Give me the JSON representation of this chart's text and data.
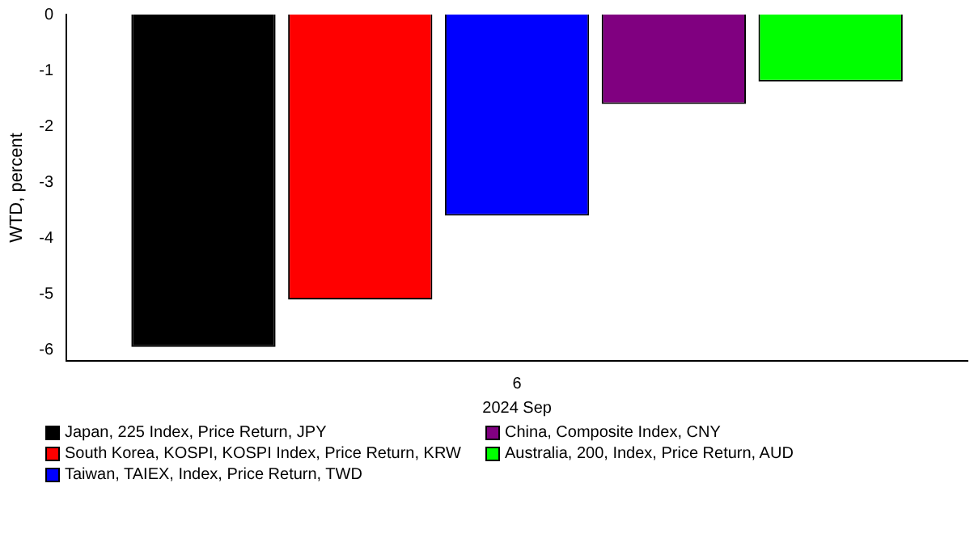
{
  "chart_data": {
    "type": "bar",
    "categories": [
      "6"
    ],
    "xlabel": "2024 Sep",
    "ylabel": "WTD, percent",
    "series": [
      {
        "name": "Japan, 225 Index, Price Return, JPY",
        "color": "#000000",
        "values": [
          -5.95
        ]
      },
      {
        "name": "South Korea, KOSPI, KOSPI Index, Price Return, KRW",
        "color": "#ff0000",
        "values": [
          -5.1
        ]
      },
      {
        "name": "Taiwan, TAIEX, Index, Price Return, TWD",
        "color": "#0000ff",
        "values": [
          -3.6
        ]
      },
      {
        "name": "China, Composite Index, CNY",
        "color": "#800080",
        "values": [
          -1.6
        ]
      },
      {
        "name": "Australia, 200, Index, Price Return, AUD",
        "color": "#00ff00",
        "values": [
          -1.2
        ]
      }
    ],
    "ylim": [
      -6.2,
      0
    ],
    "yticks": [
      0,
      -1,
      -2,
      -3,
      -4,
      -5,
      -6
    ],
    "grid": false,
    "legend": "bottom"
  }
}
